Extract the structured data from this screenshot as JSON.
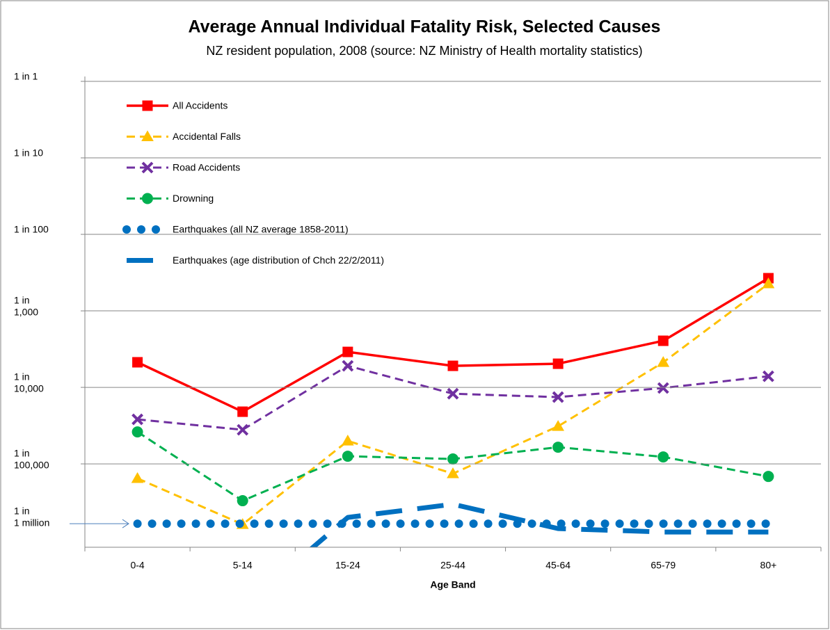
{
  "chart_data": {
    "type": "line",
    "title": "Average Annual Individual Fatality Risk, Selected Causes",
    "subtitle": "NZ resident population, 2008 (source: NZ Ministry of Health mortality statistics)",
    "x_label": "Age Band",
    "categories": [
      "0-4",
      "5-14",
      "15-24",
      "25-44",
      "45-64",
      "65-79",
      "80+"
    ],
    "y_scale": "log",
    "y_reversed": true,
    "grid": true,
    "legend": "upper-left",
    "ylim": [
      1,
      1230000
    ],
    "yticks": [
      {
        "value": 1,
        "label": "1 in 1"
      },
      {
        "value": 10,
        "label": "1 in 10"
      },
      {
        "value": 100,
        "label": "1 in 100"
      },
      {
        "value": 1000,
        "label": "1 in 1,000"
      },
      {
        "value": 10000,
        "label": "1 in 10,000"
      },
      {
        "value": 100000,
        "label": "1 in 100,000"
      }
    ],
    "annotation": "1 in 1 million",
    "series": [
      {
        "name": "All Accidents",
        "color": "#ff0000",
        "marker": "square",
        "style": "solid",
        "values": [
          4700,
          20800,
          3440,
          5230,
          4910,
          2460,
          374
        ]
      },
      {
        "name": "Accidental Falls",
        "color": "#ffc000",
        "marker": "triangle",
        "style": "dashed",
        "values": [
          155000,
          618000,
          50100,
          134000,
          32300,
          4710,
          442
        ]
      },
      {
        "name": "Road Accidents",
        "color": "#7030a0",
        "marker": "x",
        "style": "dashed",
        "values": [
          26200,
          35900,
          5230,
          12100,
          13400,
          10200,
          7160
        ]
      },
      {
        "name": "Drowning",
        "color": "#00b050",
        "marker": "circle",
        "style": "dashed",
        "values": [
          38200,
          303000,
          79400,
          86300,
          60500,
          81100,
          146000
        ]
      },
      {
        "name": "Earthquakes (all NZ average 1858-2011)",
        "color": "#0070c0",
        "marker": "none",
        "style": "dotted",
        "values": [
          605000,
          605000,
          605000,
          605000,
          605000,
          605000,
          605000
        ]
      },
      {
        "name": "Earthquakes (age distribution of Chch 22/2/2011)",
        "color": "#0070c0",
        "marker": "none",
        "style": "longdash",
        "values": [
          null,
          7600000,
          501000,
          337000,
          700000,
          778000,
          778000
        ]
      }
    ]
  }
}
